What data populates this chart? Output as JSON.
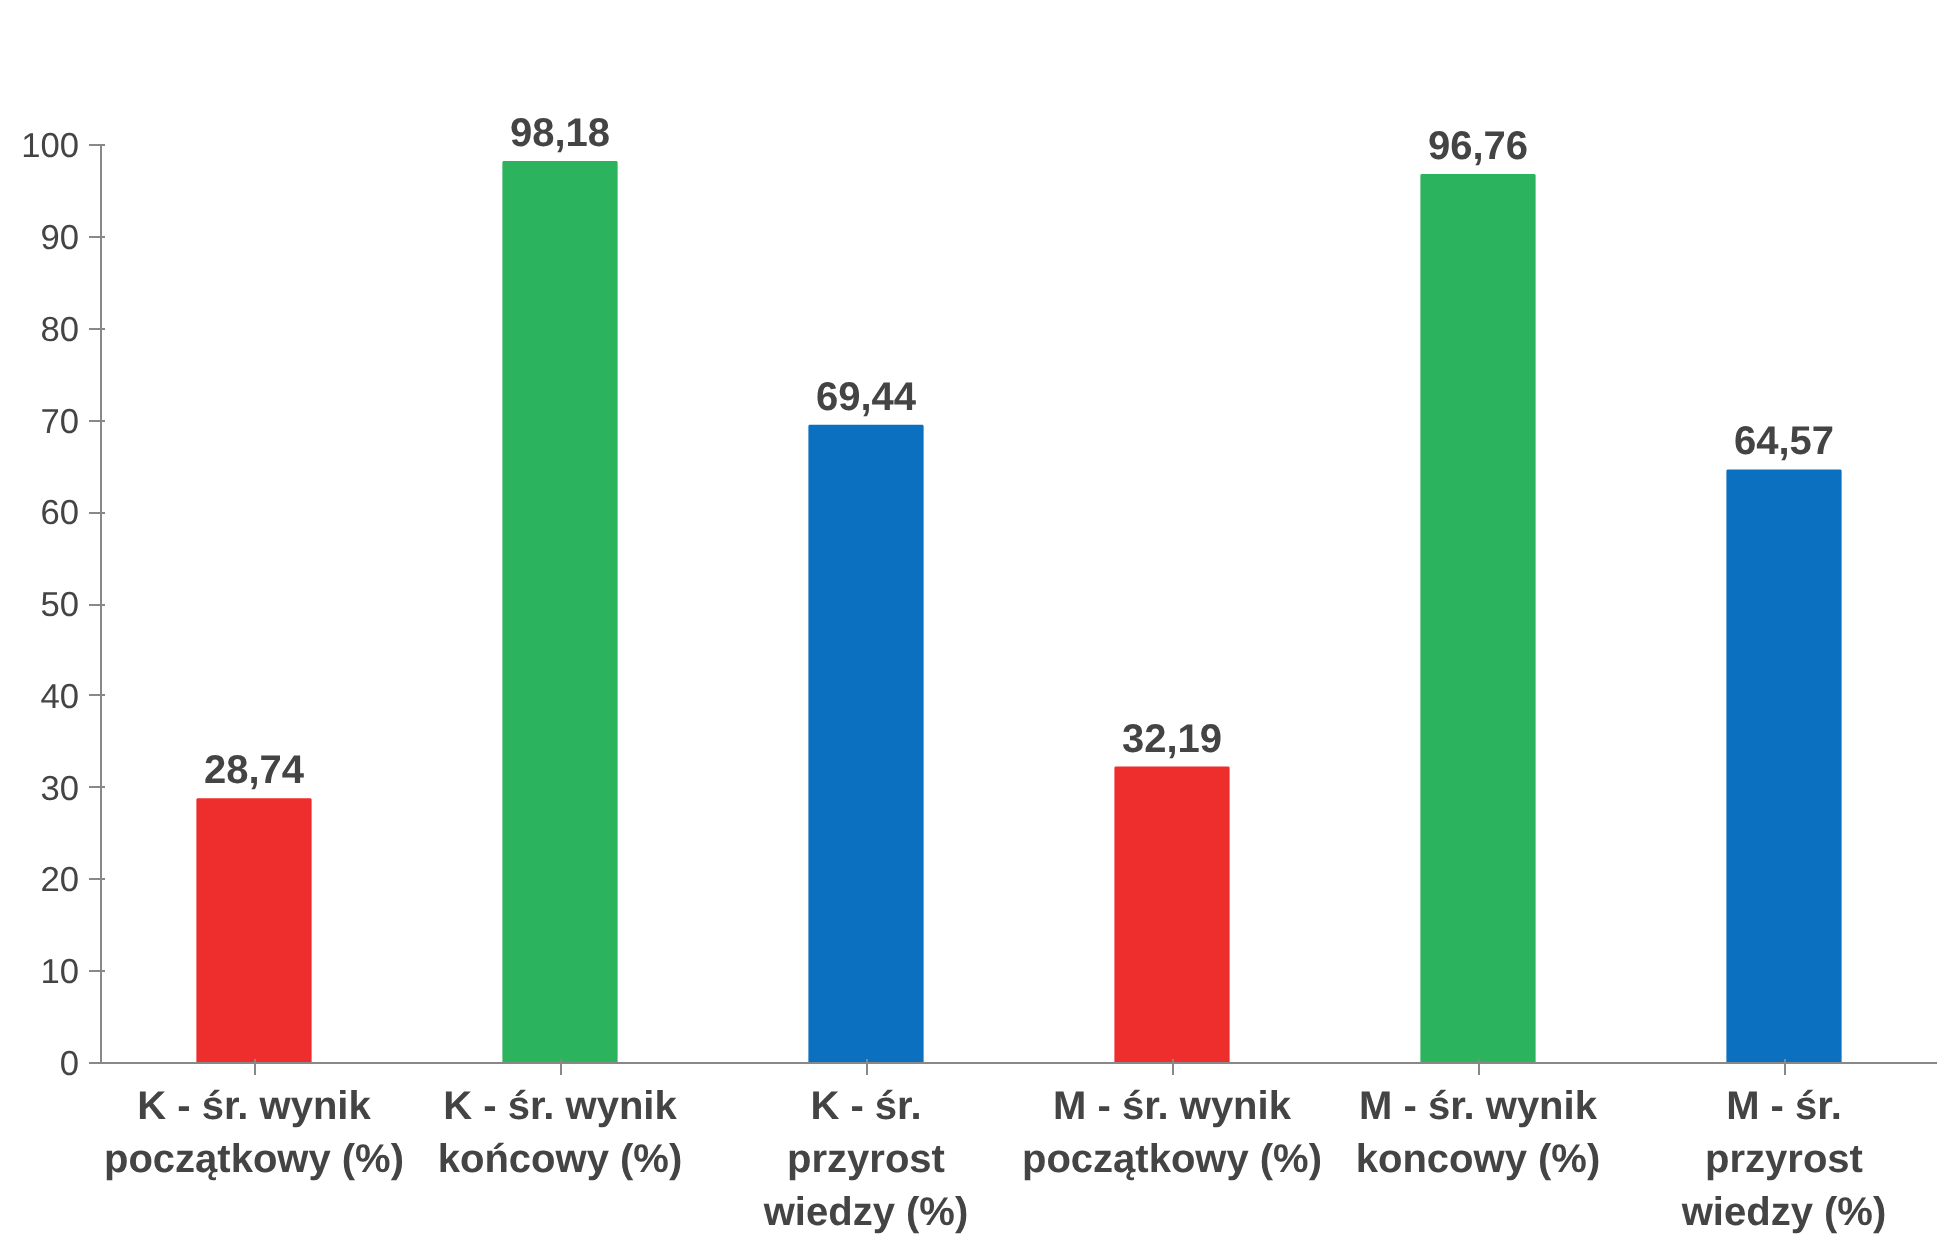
{
  "chart_data": {
    "type": "bar",
    "categories": [
      "K - śr. wynik początkowy (%)",
      "K - śr. wynik końcowy (%)",
      "K - śr. przyrost wiedzy (%)",
      "M - śr. wynik początkowy (%)",
      "M - śr. wynik koncowy (%)",
      "M - śr. przyrost wiedzy (%)"
    ],
    "values": [
      28.74,
      98.18,
      69.44,
      32.19,
      96.76,
      64.57
    ],
    "colors": [
      "#ee2d2d",
      "#2bb35e",
      "#0c70c0",
      "#ee2d2d",
      "#2bb35e",
      "#0c70c0"
    ],
    "value_labels": [
      "28,74",
      "98,18",
      "69,44",
      "32,19",
      "96,76",
      "64,57"
    ],
    "ylim": [
      0,
      100
    ],
    "yticks": [
      0,
      10,
      20,
      30,
      40,
      50,
      60,
      70,
      80,
      90,
      100
    ],
    "grid": false
  }
}
